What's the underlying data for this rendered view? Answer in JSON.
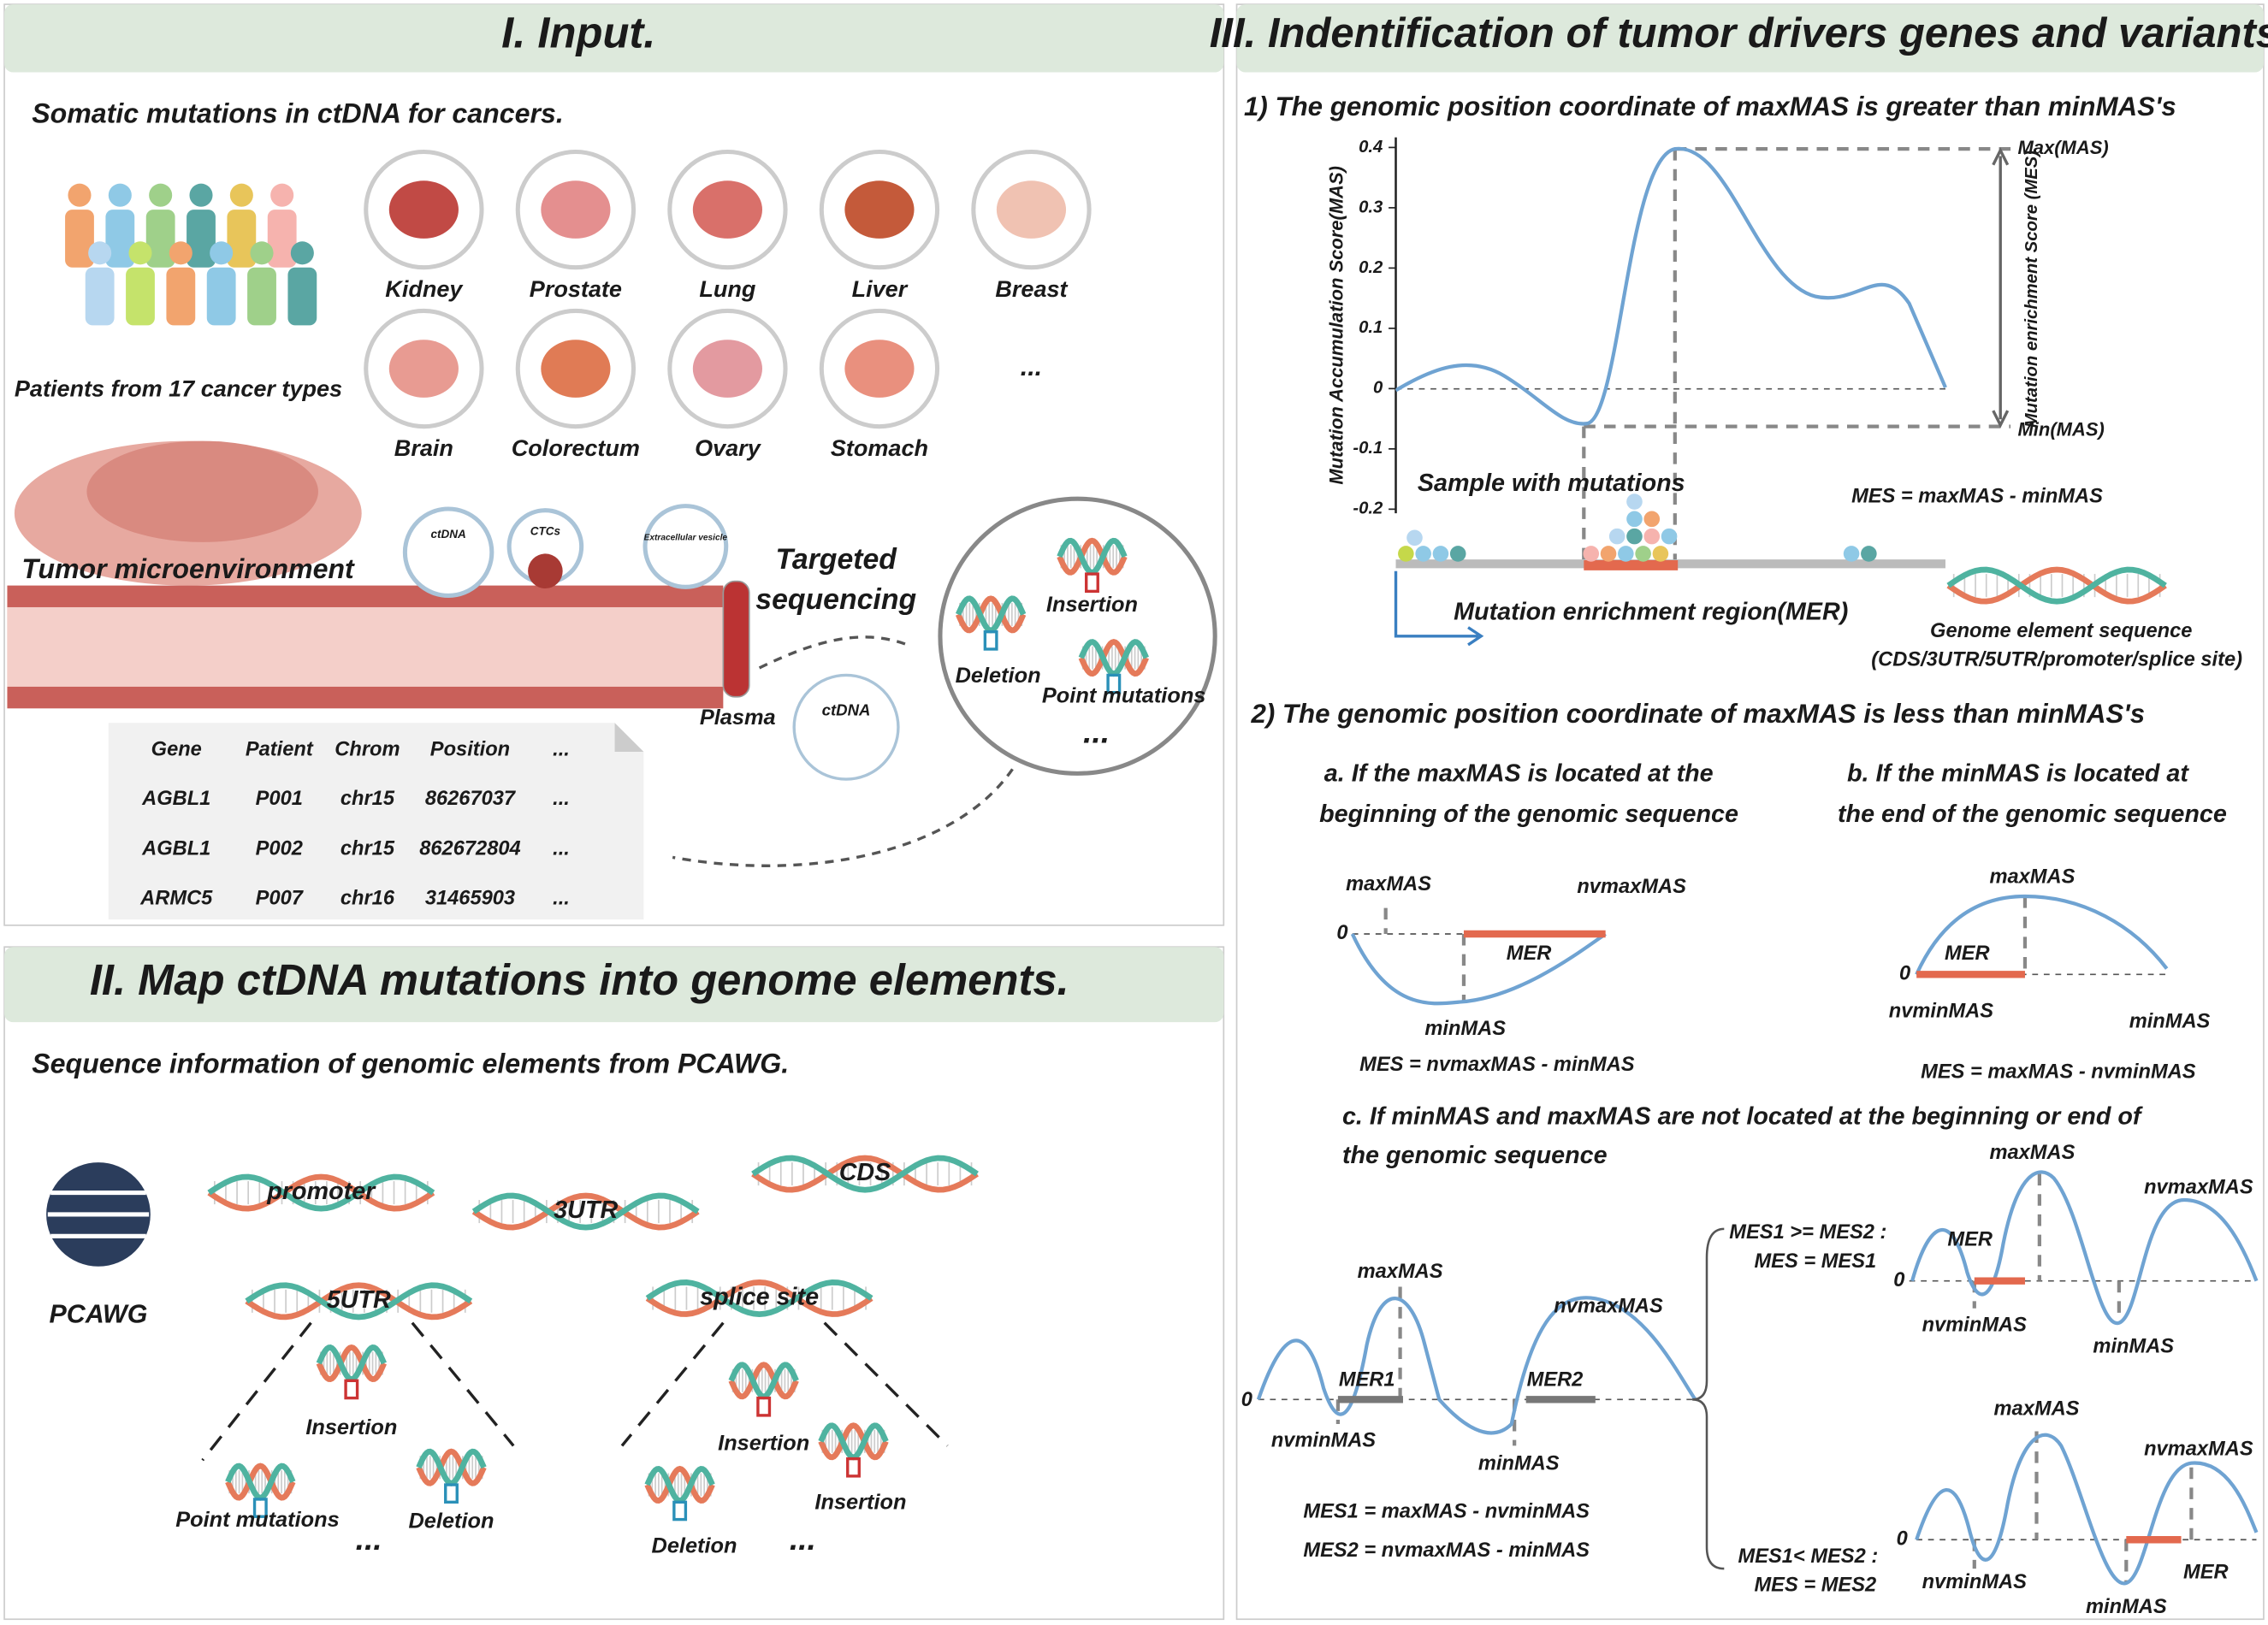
{
  "panel1": {
    "title": "I. Input.",
    "subtitle": "Somatic mutations in ctDNA for cancers.",
    "patients": "Patients from 17 cancer types",
    "organs": [
      "Kidney",
      "Prostate",
      "Lung",
      "Liver",
      "Breast",
      "Brain",
      "Colorectum",
      "Ovary",
      "Stomach"
    ],
    "organs_more": "...",
    "microenvironment": "Tumor microenvironment",
    "vessel_labels": [
      "ctDNA",
      "CTCs",
      "Extracellular vesicle"
    ],
    "plasma": "Plasma",
    "ctdna": "ctDNA",
    "sequencing": [
      "Targeted",
      "sequencing"
    ],
    "mutations": [
      "Insertion",
      "Deletion",
      "Point mutations"
    ],
    "mutations_more": "...",
    "table": {
      "header": [
        "Gene",
        "Patient",
        "Chrom",
        "Position",
        "..."
      ],
      "rows": [
        [
          "AGBL1",
          "P001",
          "chr15",
          "86267037",
          "..."
        ],
        [
          "AGBL1",
          "P002",
          "chr15",
          "862672804",
          "..."
        ],
        [
          "ARMC5",
          "P007",
          "chr16",
          "31465903",
          "..."
        ]
      ]
    }
  },
  "panel2": {
    "title": "II. Map ctDNA mutations into genome elements.",
    "subtitle": "Sequence information of genomic elements from PCAWG.",
    "source": "PCAWG",
    "elements": [
      "promoter",
      "3UTR",
      "CDS",
      "5UTR",
      "splice site"
    ],
    "utr5_mutations": [
      "Insertion",
      "Point mutations",
      "Deletion",
      "..."
    ],
    "splice_mutations": [
      "Insertion",
      "Insertion",
      "Deletion",
      "..."
    ]
  },
  "panel3": {
    "title": "III. Indentification of tumor drivers genes and variants.",
    "section1": {
      "heading": "1) The genomic position coordinate of maxMAS is greater than minMAS's",
      "y_axis": "Mutation Accumulation Score(MAS)",
      "yticks": [
        "0.4",
        "0.3",
        "0.2",
        "0.1",
        "0",
        "-0.1",
        "-0.2"
      ],
      "max_label": "Max(MAS)",
      "min_label": "Min(MAS)",
      "mes_axis": "Mutation enrichment Score (MES)",
      "samples": "Sample with mutations",
      "formula": "MES = maxMAS - minMAS",
      "mer": "Mutation enrichment region(MER)",
      "genome": "Genome element sequence",
      "genome_types": "(CDS/3UTR/5UTR/promoter/splice site)"
    },
    "section2": {
      "heading": "2) The genomic position coordinate of maxMAS is less than minMAS's",
      "a": {
        "text": [
          "a. If the maxMAS is located at the",
          "beginning of the genomic sequence"
        ],
        "zero": "0",
        "maxMAS": "maxMAS",
        "nvmaxMAS": "nvmaxMAS",
        "mer": "MER",
        "minMAS": "minMAS",
        "formula": "MES = nvmaxMAS - minMAS"
      },
      "b": {
        "text": [
          "b. If the minMAS is located at",
          "the end of the genomic sequence"
        ],
        "zero": "0",
        "maxMAS": "maxMAS",
        "mer": "MER",
        "nvminMAS": "nvminMAS",
        "minMAS": "minMAS",
        "formula": "MES = maxMAS - nvminMAS"
      },
      "c": {
        "text": [
          "c. If minMAS and maxMAS are not located at the beginning or end of",
          "the genomic sequence"
        ],
        "left": {
          "zero": "0",
          "maxMAS": "maxMAS",
          "nvmaxMAS": "nvmaxMAS",
          "mer1": "MER1",
          "mer2": "MER2",
          "nvminMAS": "nvminMAS",
          "minMAS": "minMAS",
          "formulas": [
            "MES1 = maxMAS - nvminMAS",
            "MES2 = nvmaxMAS - minMAS"
          ]
        },
        "case1": {
          "condition": [
            "MES1 >= MES2 :",
            "MES = MES1"
          ],
          "zero": "0",
          "maxMAS": "maxMAS",
          "nvmaxMAS": "nvmaxMAS",
          "mer": "MER",
          "nvminMAS": "nvminMAS",
          "minMAS": "minMAS"
        },
        "case2": {
          "condition": [
            "MES1< MES2 :",
            "MES = MES2"
          ],
          "zero": "0",
          "maxMAS": "maxMAS",
          "nvmaxMAS": "nvmaxMAS",
          "mer": "MER",
          "nvminMAS": "nvminMAS",
          "minMAS": "minMAS"
        }
      }
    }
  }
}
